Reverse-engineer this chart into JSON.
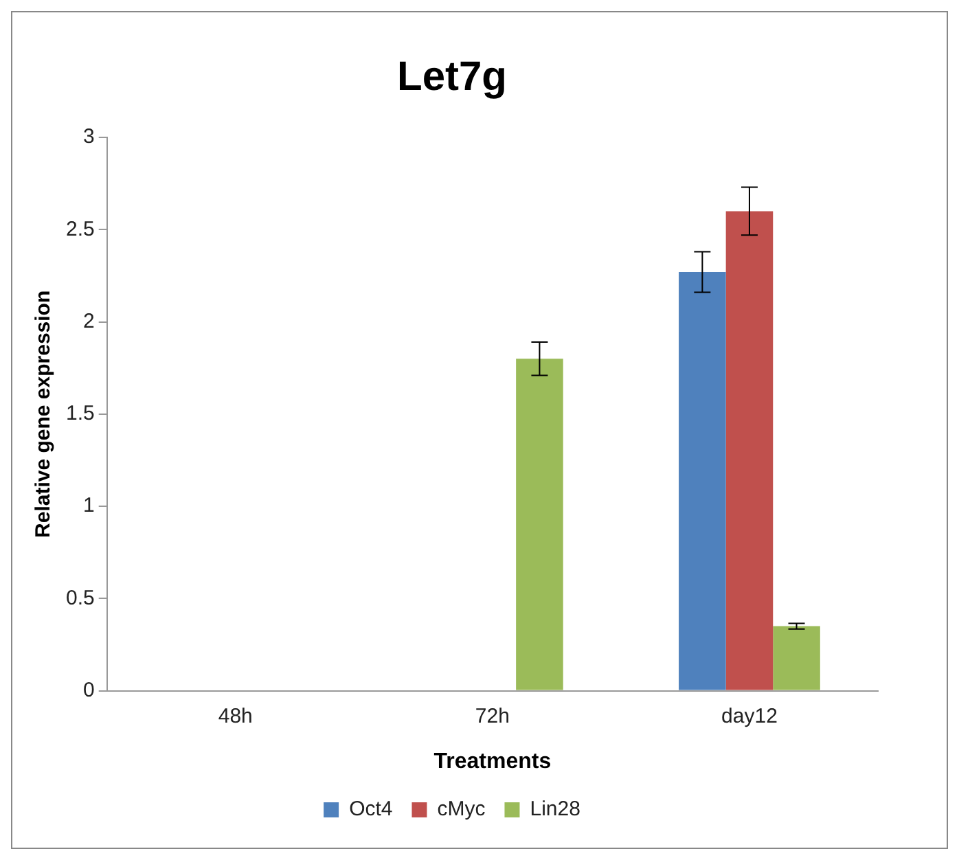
{
  "chart_data": {
    "type": "bar",
    "title": "Let7g",
    "xlabel": "Treatments",
    "ylabel": "Relative gene expression",
    "categories": [
      "48h",
      "72h",
      "day12"
    ],
    "series": [
      {
        "name": "Oct4",
        "color": "#4f81bd",
        "values": [
          0,
          0,
          2.27
        ],
        "errors": [
          null,
          null,
          0.11
        ]
      },
      {
        "name": "cMyc",
        "color": "#c0504d",
        "values": [
          0,
          0,
          2.6
        ],
        "errors": [
          null,
          null,
          0.13
        ]
      },
      {
        "name": "Lin28",
        "color": "#9bbb59",
        "values": [
          0,
          1.8,
          0.35
        ],
        "errors": [
          null,
          0.09,
          0.015
        ]
      }
    ],
    "ylim": [
      0,
      3
    ],
    "yticks": [
      0,
      0.5,
      1,
      1.5,
      2,
      2.5,
      3
    ],
    "grid": false,
    "legend": "bottom"
  }
}
